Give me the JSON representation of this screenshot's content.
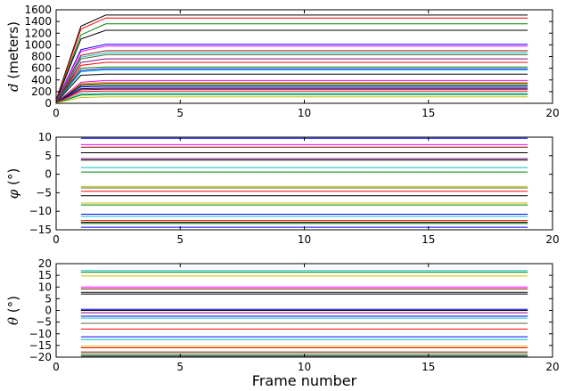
{
  "chart_data": [
    {
      "type": "line",
      "ylabel_italic": "d",
      "ylabel_rest": " (meters)",
      "xlabel": "",
      "xlim": [
        0,
        20
      ],
      "ylim": [
        0,
        1600
      ],
      "xticks": [
        "0",
        "5",
        "10",
        "15",
        "20"
      ],
      "yticks": [
        "0",
        "200",
        "400",
        "600",
        "800",
        "1000",
        "1200",
        "1400",
        "1600"
      ],
      "grid": false,
      "x": [
        0,
        1,
        2,
        19
      ],
      "series": [
        {
          "color": "#000000",
          "values": [
            60,
            1320,
            1510,
            1510
          ]
        },
        {
          "color": "#ff0000",
          "values": [
            50,
            1270,
            1460,
            1460
          ]
        },
        {
          "color": "#008000",
          "values": [
            40,
            1170,
            1360,
            1360
          ]
        },
        {
          "color": "#000000",
          "values": [
            35,
            1100,
            1250,
            1250
          ]
        },
        {
          "color": "#0000ff",
          "values": [
            30,
            920,
            1010,
            1010
          ]
        },
        {
          "color": "#ff00ff",
          "values": [
            30,
            890,
            980,
            980
          ]
        },
        {
          "color": "#8b0000",
          "values": [
            25,
            820,
            900,
            900
          ]
        },
        {
          "color": "#00bfbf",
          "values": [
            25,
            790,
            860,
            860
          ]
        },
        {
          "color": "#556b2f",
          "values": [
            20,
            760,
            830,
            830
          ]
        },
        {
          "color": "#800080",
          "values": [
            20,
            700,
            760,
            760
          ]
        },
        {
          "color": "#ff0000",
          "values": [
            20,
            650,
            700,
            700
          ]
        },
        {
          "color": "#008000",
          "values": [
            20,
            600,
            620,
            620
          ]
        },
        {
          "color": "#0000ff",
          "values": [
            15,
            560,
            590,
            590
          ]
        },
        {
          "color": "#00bfbf",
          "values": [
            15,
            540,
            570,
            570
          ]
        },
        {
          "color": "#000000",
          "values": [
            15,
            480,
            500,
            500
          ]
        },
        {
          "color": "#ff00ff",
          "values": [
            15,
            360,
            390,
            390
          ]
        },
        {
          "color": "#bfbf00",
          "values": [
            10,
            340,
            360,
            360
          ]
        },
        {
          "color": "#8b0000",
          "values": [
            10,
            320,
            340,
            340
          ]
        },
        {
          "color": "#008000",
          "values": [
            10,
            300,
            310,
            310
          ]
        },
        {
          "color": "#0000ff",
          "values": [
            10,
            280,
            290,
            290
          ]
        },
        {
          "color": "#000000",
          "values": [
            10,
            250,
            260,
            260
          ]
        },
        {
          "color": "#800080",
          "values": [
            10,
            230,
            240,
            240
          ]
        },
        {
          "color": "#ff0000",
          "values": [
            10,
            200,
            210,
            210
          ]
        },
        {
          "color": "#00bfbf",
          "values": [
            5,
            160,
            170,
            170
          ]
        },
        {
          "color": "#008000",
          "values": [
            5,
            140,
            150,
            150
          ]
        },
        {
          "color": "#bfbf00",
          "values": [
            5,
            100,
            110,
            110
          ]
        }
      ]
    },
    {
      "type": "line",
      "ylabel_italic": "φ",
      "ylabel_rest": " (°)",
      "xlabel": "",
      "xlim": [
        0,
        20
      ],
      "ylim": [
        -15,
        10
      ],
      "xticks": [
        "0",
        "5",
        "10",
        "15",
        "20"
      ],
      "yticks": [
        "−15",
        "−10",
        "−5",
        "0",
        "5",
        "10"
      ],
      "grid": false,
      "x": [
        1,
        19
      ],
      "series": [
        {
          "color": "#0000ff",
          "values": [
            9.7,
            9.7
          ]
        },
        {
          "color": "#ff00ff",
          "values": [
            8.0,
            8.0
          ]
        },
        {
          "color": "#8b0000",
          "values": [
            7.3,
            7.3
          ]
        },
        {
          "color": "#000000",
          "values": [
            5.8,
            5.8
          ]
        },
        {
          "color": "#800080",
          "values": [
            4.2,
            4.2
          ]
        },
        {
          "color": "#000000",
          "values": [
            3.8,
            3.8
          ]
        },
        {
          "color": "#00bfbf",
          "values": [
            1.8,
            1.8
          ]
        },
        {
          "color": "#008000",
          "values": [
            0.6,
            0.6
          ]
        },
        {
          "color": "#bfbf00",
          "values": [
            -3.3,
            -3.3
          ]
        },
        {
          "color": "#556b2f",
          "values": [
            -3.7,
            -3.7
          ]
        },
        {
          "color": "#ff0000",
          "values": [
            -4.6,
            -4.6
          ]
        },
        {
          "color": "#000000",
          "values": [
            -5.8,
            -5.8
          ]
        },
        {
          "color": "#bfbf00",
          "values": [
            -7.8,
            -7.8
          ]
        },
        {
          "color": "#008000",
          "values": [
            -8.3,
            -8.3
          ]
        },
        {
          "color": "#0000ff",
          "values": [
            -10.8,
            -10.8
          ]
        },
        {
          "color": "#00bfbf",
          "values": [
            -11.4,
            -11.4
          ]
        },
        {
          "color": "#ff0000",
          "values": [
            -12.5,
            -12.5
          ]
        },
        {
          "color": "#000000",
          "values": [
            -13.0,
            -13.0
          ]
        },
        {
          "color": "#008000",
          "values": [
            -13.3,
            -13.3
          ]
        },
        {
          "color": "#0000ff",
          "values": [
            -14.3,
            -14.3
          ]
        }
      ]
    },
    {
      "type": "line",
      "ylabel_italic": "θ",
      "ylabel_rest": " (°)",
      "xlabel": "Frame number",
      "xlim": [
        0,
        20
      ],
      "ylim": [
        -20,
        20
      ],
      "xticks": [
        "0",
        "5",
        "10",
        "15",
        "20"
      ],
      "yticks": [
        "−20",
        "−15",
        "−10",
        "−5",
        "0",
        "5",
        "10",
        "15",
        "20"
      ],
      "grid": false,
      "x": [
        1,
        19
      ],
      "series": [
        {
          "color": "#00bfbf",
          "values": [
            17.0,
            17.0
          ]
        },
        {
          "color": "#008000",
          "values": [
            16.3,
            16.3
          ]
        },
        {
          "color": "#bfbf00",
          "values": [
            14.7,
            14.7
          ]
        },
        {
          "color": "#ff00ff",
          "values": [
            10.0,
            10.0
          ]
        },
        {
          "color": "#8b0000",
          "values": [
            9.2,
            9.2
          ]
        },
        {
          "color": "#000000",
          "values": [
            7.7,
            7.7
          ]
        },
        {
          "color": "#000000",
          "values": [
            7.0,
            7.0
          ]
        },
        {
          "color": "#0000ff",
          "values": [
            0.5,
            0.5
          ]
        },
        {
          "color": "#000000",
          "values": [
            0.0,
            0.0
          ]
        },
        {
          "color": "#800080",
          "values": [
            -1.0,
            -1.0
          ]
        },
        {
          "color": "#0000ff",
          "values": [
            -2.5,
            -2.5
          ]
        },
        {
          "color": "#00bfbf",
          "values": [
            -3.3,
            -3.3
          ]
        },
        {
          "color": "#556b2f",
          "values": [
            -5.5,
            -5.5
          ]
        },
        {
          "color": "#ff0000",
          "values": [
            -8.0,
            -8.0
          ]
        },
        {
          "color": "#0000ff",
          "values": [
            -11.3,
            -11.3
          ]
        },
        {
          "color": "#00bfbf",
          "values": [
            -12.5,
            -12.5
          ]
        },
        {
          "color": "#bfbf00",
          "values": [
            -15.3,
            -15.3
          ]
        },
        {
          "color": "#ff0000",
          "values": [
            -16.0,
            -16.0
          ]
        },
        {
          "color": "#8b0000",
          "values": [
            -17.8,
            -17.8
          ]
        },
        {
          "color": "#008000",
          "values": [
            -18.7,
            -18.7
          ]
        },
        {
          "color": "#000000",
          "values": [
            -19.5,
            -19.5
          ]
        }
      ]
    }
  ]
}
